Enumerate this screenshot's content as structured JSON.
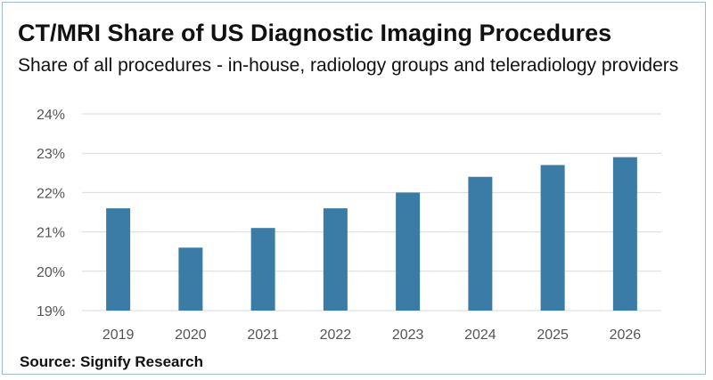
{
  "chart_data": {
    "type": "bar",
    "title": "CT/MRI Share of US Diagnostic Imaging Procedures",
    "subtitle": "Share of all procedures - in-house, radiology groups and teleradiology providers",
    "categories": [
      "2019",
      "2020",
      "2021",
      "2022",
      "2023",
      "2024",
      "2025",
      "2026"
    ],
    "series": [
      {
        "name": "CT/MRI share",
        "values": [
          21.6,
          20.6,
          21.1,
          21.6,
          22.0,
          22.4,
          22.7,
          22.9
        ]
      }
    ],
    "y_ticks": [
      "19%",
      "20%",
      "21%",
      "22%",
      "23%",
      "24%"
    ],
    "ylim": [
      19,
      24
    ],
    "xlabel": "",
    "ylabel": "",
    "grid": true,
    "bar_color": "#3a7ca5",
    "grid_color": "#d9d9d9"
  },
  "source": "Source: Signify Research",
  "colors": {
    "border": "#9bbcd8",
    "text": "#111111",
    "axis_text": "#555555"
  }
}
